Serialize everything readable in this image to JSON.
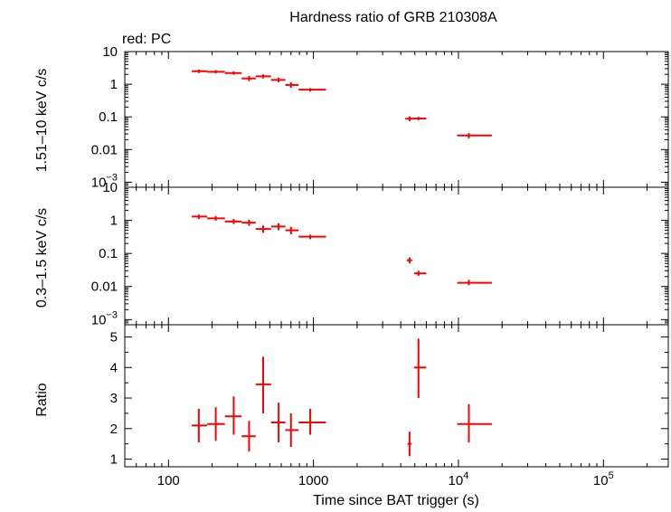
{
  "title": "Hardness ratio of GRB 210308A",
  "subtitle": "red: PC",
  "xlabel": "Time since BAT trigger (s)",
  "x_tick_labels": [
    {
      "value": 100,
      "label": "100"
    },
    {
      "value": 1000,
      "label": "1000"
    },
    {
      "value": 10000,
      "label": "10",
      "exp": "4"
    },
    {
      "value": 100000,
      "label": "10",
      "exp": "5"
    }
  ],
  "colors": {
    "series": "#ff0000",
    "axis": "#000000"
  },
  "chart_data": [
    {
      "type": "scatter",
      "panel": "top",
      "ylabel": "1.51–10 keV c/s",
      "xscale": "log",
      "yscale": "log",
      "xlim": [
        50,
        280000
      ],
      "ylim": [
        0.0007,
        10
      ],
      "y_tick_labels": [
        {
          "value": 10,
          "label": "10"
        },
        {
          "value": 1,
          "label": "1"
        },
        {
          "value": 0.1,
          "label": "0.1"
        },
        {
          "value": 0.01,
          "label": "0.01"
        },
        {
          "value": 0.001,
          "label": "10",
          "exp": "−3"
        }
      ],
      "series": [
        {
          "color": "#ff0000",
          "points": [
            {
              "x": 162,
              "xlo": 145,
              "xhi": 185,
              "y": 2.5,
              "ylo": 2.2,
              "yhi": 2.8
            },
            {
              "x": 212,
              "xlo": 185,
              "xhi": 245,
              "y": 2.4,
              "ylo": 2.15,
              "yhi": 2.7
            },
            {
              "x": 282,
              "xlo": 245,
              "xhi": 320,
              "y": 2.2,
              "ylo": 1.95,
              "yhi": 2.45
            },
            {
              "x": 360,
              "xlo": 320,
              "xhi": 400,
              "y": 1.5,
              "ylo": 1.25,
              "yhi": 1.8
            },
            {
              "x": 450,
              "xlo": 400,
              "xhi": 510,
              "y": 1.75,
              "ylo": 1.5,
              "yhi": 2.0
            },
            {
              "x": 575,
              "xlo": 510,
              "xhi": 640,
              "y": 1.35,
              "ylo": 1.15,
              "yhi": 1.6
            },
            {
              "x": 700,
              "xlo": 640,
              "xhi": 790,
              "y": 0.95,
              "ylo": 0.78,
              "yhi": 1.15
            },
            {
              "x": 950,
              "xlo": 790,
              "xhi": 1220,
              "y": 0.68,
              "ylo": 0.6,
              "yhi": 0.76
            },
            {
              "x": 4600,
              "xlo": 4300,
              "xhi": 4950,
              "y": 0.088,
              "ylo": 0.074,
              "yhi": 0.104
            },
            {
              "x": 5300,
              "xlo": 4950,
              "xhi": 6000,
              "y": 0.089,
              "ylo": 0.079,
              "yhi": 0.1
            },
            {
              "x": 11800,
              "xlo": 9800,
              "xhi": 17000,
              "y": 0.027,
              "ylo": 0.022,
              "yhi": 0.032
            }
          ]
        }
      ]
    },
    {
      "type": "scatter",
      "panel": "middle",
      "ylabel": "0.3–1.5 keV c/s",
      "xscale": "log",
      "yscale": "log",
      "xlim": [
        50,
        280000
      ],
      "ylim": [
        0.0007,
        10
      ],
      "y_tick_labels": [
        {
          "value": 10,
          "label": "10"
        },
        {
          "value": 1,
          "label": "1"
        },
        {
          "value": 0.1,
          "label": "0.1"
        },
        {
          "value": 0.01,
          "label": "0.01"
        },
        {
          "value": 0.001,
          "label": "10",
          "exp": "−3"
        }
      ],
      "series": [
        {
          "color": "#ff0000",
          "points": [
            {
              "x": 162,
              "xlo": 145,
              "xhi": 185,
              "y": 1.3,
              "ylo": 1.1,
              "yhi": 1.5
            },
            {
              "x": 212,
              "xlo": 185,
              "xhi": 245,
              "y": 1.15,
              "ylo": 0.98,
              "yhi": 1.35
            },
            {
              "x": 282,
              "xlo": 245,
              "xhi": 320,
              "y": 0.92,
              "ylo": 0.77,
              "yhi": 1.1
            },
            {
              "x": 360,
              "xlo": 320,
              "xhi": 400,
              "y": 0.85,
              "ylo": 0.68,
              "yhi": 1.05
            },
            {
              "x": 450,
              "xlo": 400,
              "xhi": 510,
              "y": 0.55,
              "ylo": 0.42,
              "yhi": 0.7
            },
            {
              "x": 575,
              "xlo": 510,
              "xhi": 640,
              "y": 0.65,
              "ylo": 0.5,
              "yhi": 0.82
            },
            {
              "x": 700,
              "xlo": 640,
              "xhi": 790,
              "y": 0.5,
              "ylo": 0.38,
              "yhi": 0.64
            },
            {
              "x": 950,
              "xlo": 790,
              "xhi": 1220,
              "y": 0.32,
              "ylo": 0.27,
              "yhi": 0.37
            },
            {
              "x": 4600,
              "xlo": 4400,
              "xhi": 4800,
              "y": 0.062,
              "ylo": 0.05,
              "yhi": 0.076
            },
            {
              "x": 5300,
              "xlo": 4950,
              "xhi": 6000,
              "y": 0.025,
              "ylo": 0.021,
              "yhi": 0.03
            },
            {
              "x": 11800,
              "xlo": 9800,
              "xhi": 17000,
              "y": 0.013,
              "ylo": 0.011,
              "yhi": 0.016
            }
          ]
        }
      ]
    },
    {
      "type": "scatter",
      "panel": "bottom",
      "ylabel": "Ratio",
      "xscale": "log",
      "yscale": "linear",
      "xlim": [
        50,
        280000
      ],
      "ylim": [
        0.75,
        5.4
      ],
      "y_tick_labels": [
        {
          "value": 1,
          "label": "1"
        },
        {
          "value": 2,
          "label": "2"
        },
        {
          "value": 3,
          "label": "3"
        },
        {
          "value": 4,
          "label": "4"
        },
        {
          "value": 5,
          "label": "5"
        }
      ],
      "series": [
        {
          "color": "#ff0000",
          "points": [
            {
              "x": 162,
              "xlo": 145,
              "xhi": 185,
              "y": 2.1,
              "ylo": 1.55,
              "yhi": 2.65
            },
            {
              "x": 212,
              "xlo": 185,
              "xhi": 245,
              "y": 2.15,
              "ylo": 1.6,
              "yhi": 2.7
            },
            {
              "x": 282,
              "xlo": 245,
              "xhi": 320,
              "y": 2.4,
              "ylo": 1.8,
              "yhi": 3.05
            },
            {
              "x": 360,
              "xlo": 320,
              "xhi": 400,
              "y": 1.75,
              "ylo": 1.25,
              "yhi": 2.25
            },
            {
              "x": 450,
              "xlo": 400,
              "xhi": 510,
              "y": 3.45,
              "ylo": 2.5,
              "yhi": 4.35
            },
            {
              "x": 575,
              "xlo": 510,
              "xhi": 640,
              "y": 2.2,
              "ylo": 1.55,
              "yhi": 2.85
            },
            {
              "x": 700,
              "xlo": 640,
              "xhi": 790,
              "y": 1.95,
              "ylo": 1.4,
              "yhi": 2.5
            },
            {
              "x": 950,
              "xlo": 790,
              "xhi": 1220,
              "y": 2.2,
              "ylo": 1.8,
              "yhi": 2.65
            },
            {
              "x": 4600,
              "xlo": 4450,
              "xhi": 4750,
              "y": 1.5,
              "ylo": 1.1,
              "yhi": 1.9
            },
            {
              "x": 5300,
              "xlo": 4950,
              "xhi": 6000,
              "y": 4.0,
              "ylo": 3.0,
              "yhi": 4.95
            },
            {
              "x": 11800,
              "xlo": 9800,
              "xhi": 17000,
              "y": 2.15,
              "ylo": 1.55,
              "yhi": 2.8
            }
          ]
        }
      ]
    }
  ]
}
